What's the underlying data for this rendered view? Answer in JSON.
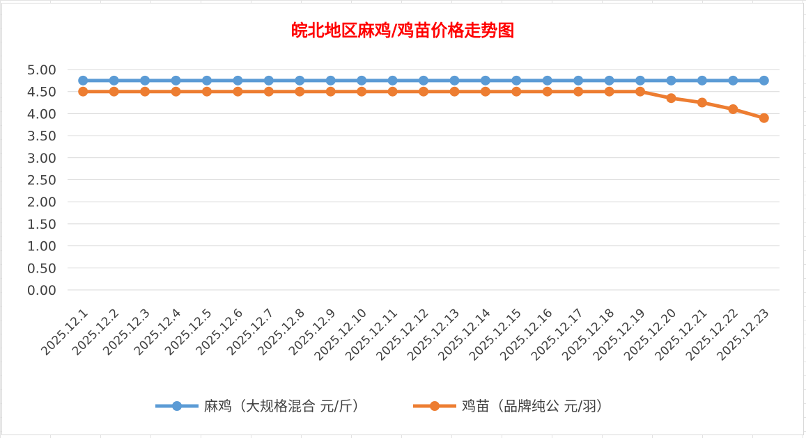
{
  "chart_data": {
    "type": "line",
    "title": "皖北地区麻鸡/鸡苗价格走势图",
    "xlabel": "",
    "ylabel": "",
    "ylim": [
      0,
      5
    ],
    "y_ticks": [
      "0.00",
      "0.50",
      "1.00",
      "1.50",
      "2.00",
      "2.50",
      "3.00",
      "3.50",
      "4.00",
      "4.50",
      "5.00"
    ],
    "categories": [
      "2025.12.1",
      "2025.12.2",
      "2025.12.3",
      "2025.12.4",
      "2025.12.5",
      "2025.12.6",
      "2025.12.7",
      "2025.12.8",
      "2025.12.9",
      "2025.12.10",
      "2025.12.11",
      "2025.12.12",
      "2025.12.13",
      "2025.12.14",
      "2025.12.15",
      "2025.12.16",
      "2025.12.17",
      "2025.12.18",
      "2025.12.19",
      "2025.12.20",
      "2025.12.21",
      "2025.12.22",
      "2025.12.23"
    ],
    "series": [
      {
        "name": "麻鸡（大规格混合 元/斤）",
        "color": "#5b9bd5",
        "values": [
          4.75,
          4.75,
          4.75,
          4.75,
          4.75,
          4.75,
          4.75,
          4.75,
          4.75,
          4.75,
          4.75,
          4.75,
          4.75,
          4.75,
          4.75,
          4.75,
          4.75,
          4.75,
          4.75,
          4.75,
          4.75,
          4.75,
          4.75
        ]
      },
      {
        "name": "鸡苗（品牌纯公 元/羽）",
        "color": "#ed7d31",
        "values": [
          4.5,
          4.5,
          4.5,
          4.5,
          4.5,
          4.5,
          4.5,
          4.5,
          4.5,
          4.5,
          4.5,
          4.5,
          4.5,
          4.5,
          4.5,
          4.5,
          4.5,
          4.5,
          4.5,
          4.35,
          4.25,
          4.1,
          3.9
        ]
      }
    ],
    "grid": true,
    "legend_position": "bottom"
  }
}
